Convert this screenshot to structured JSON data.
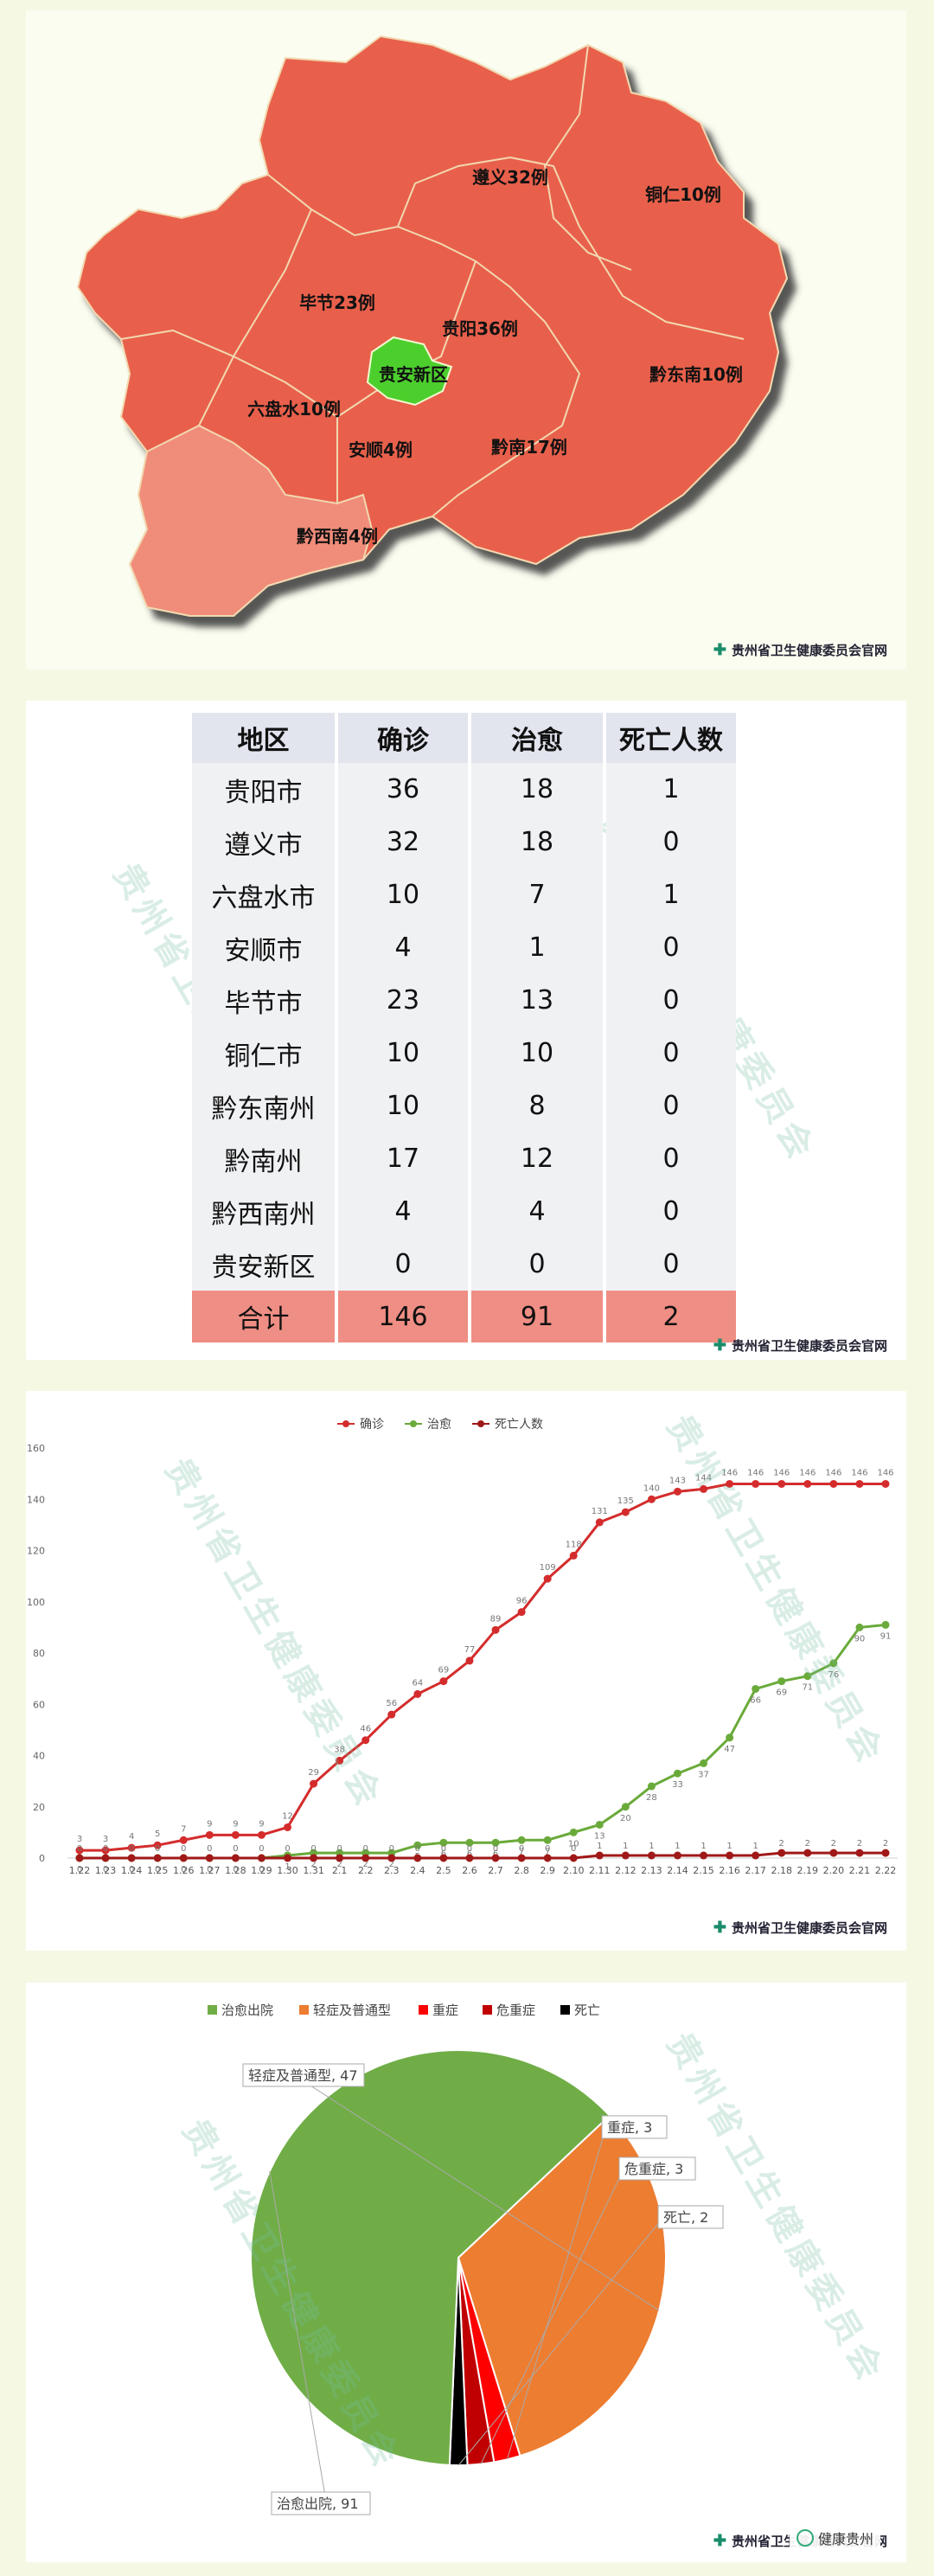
{
  "map": {
    "regions": [
      {
        "label": "遵义32例"
      },
      {
        "label": "铜仁10例"
      },
      {
        "label": "毕节23例"
      },
      {
        "label": "贵阳36例"
      },
      {
        "label": "贵安新区"
      },
      {
        "label": "黔东南10例"
      },
      {
        "label": "六盘水10例"
      },
      {
        "label": "安顺4例"
      },
      {
        "label": "黔南17例"
      },
      {
        "label": "黔西南4例"
      }
    ],
    "credit": "贵州省卫生健康委员会官网",
    "colors": {
      "region": "#e8604c",
      "light_region": "#f08c7a",
      "highlight": "#4ccf2d"
    }
  },
  "table": {
    "headers": [
      "地区",
      "确诊",
      "治愈",
      "死亡人数"
    ],
    "rows": [
      [
        "贵阳市",
        "36",
        "18",
        "1"
      ],
      [
        "遵义市",
        "32",
        "18",
        "0"
      ],
      [
        "六盘水市",
        "10",
        "7",
        "1"
      ],
      [
        "安顺市",
        "4",
        "1",
        "0"
      ],
      [
        "毕节市",
        "23",
        "13",
        "0"
      ],
      [
        "铜仁市",
        "10",
        "10",
        "0"
      ],
      [
        "黔东南州",
        "10",
        "8",
        "0"
      ],
      [
        "黔南州",
        "17",
        "12",
        "0"
      ],
      [
        "黔西南州",
        "4",
        "4",
        "0"
      ],
      [
        "贵安新区",
        "0",
        "0",
        "0"
      ]
    ],
    "total": [
      "合计",
      "146",
      "91",
      "2"
    ],
    "credit": "贵州省卫生健康委员会官网"
  },
  "line_credit": "贵州省卫生健康委员会官网",
  "pie_credit": "贵州省卫生健康委员会官网",
  "pie_overlay": "健康贵州",
  "chart_data": [
    {
      "type": "line",
      "x": [
        "1.22",
        "1.23",
        "1.24",
        "1.25",
        "1.26",
        "1.27",
        "1.28",
        "1.29",
        "1.30",
        "1.31",
        "2.1",
        "2.2",
        "2.3",
        "2.4",
        "2.5",
        "2.6",
        "2.7",
        "2.8",
        "2.9",
        "2.10",
        "2.11",
        "2.12",
        "2.13",
        "2.14",
        "2.15",
        "2.16",
        "2.17",
        "2.18",
        "2.19",
        "2.20",
        "2.21",
        "2.22"
      ],
      "series": [
        {
          "name": "确诊",
          "color": "#d42c2c",
          "values": [
            3,
            3,
            4,
            5,
            7,
            9,
            9,
            9,
            12,
            29,
            38,
            46,
            56,
            64,
            69,
            77,
            89,
            96,
            109,
            118,
            131,
            135,
            140,
            143,
            144,
            146,
            146,
            146,
            146,
            146,
            146,
            146
          ]
        },
        {
          "name": "治愈",
          "color": "#6aaa3a",
          "values": [
            0,
            0,
            0,
            0,
            0,
            0,
            0,
            0,
            1,
            2,
            2,
            2,
            2,
            5,
            6,
            6,
            6,
            7,
            7,
            10,
            13,
            20,
            28,
            33,
            37,
            47,
            66,
            69,
            71,
            76,
            90,
            91
          ]
        },
        {
          "name": "死亡人数",
          "color": "#a01818",
          "values": [
            0,
            0,
            0,
            0,
            0,
            0,
            0,
            0,
            0,
            0,
            0,
            0,
            0,
            0,
            0,
            0,
            0,
            0,
            0,
            0,
            1,
            1,
            1,
            1,
            1,
            1,
            1,
            2,
            2,
            2,
            2,
            2
          ]
        }
      ],
      "ylim": [
        0,
        160
      ],
      "yticks": [
        0,
        20,
        40,
        60,
        80,
        100,
        120,
        140,
        160
      ],
      "legend": "top-center",
      "grid": false
    },
    {
      "type": "pie",
      "categories": [
        "治愈出院",
        "轻症及普通型",
        "重症",
        "危重症",
        "死亡"
      ],
      "values": [
        91,
        47,
        3,
        3,
        2
      ],
      "colors": [
        "#70ad47",
        "#ed7d31",
        "#ff0000",
        "#c00000",
        "#000000"
      ],
      "slice_labels": [
        "治愈出院, 91",
        "轻症及普通型, 47",
        "重症, 3",
        "危重症, 3",
        "死亡, 2"
      ],
      "legend": "top-center"
    }
  ]
}
